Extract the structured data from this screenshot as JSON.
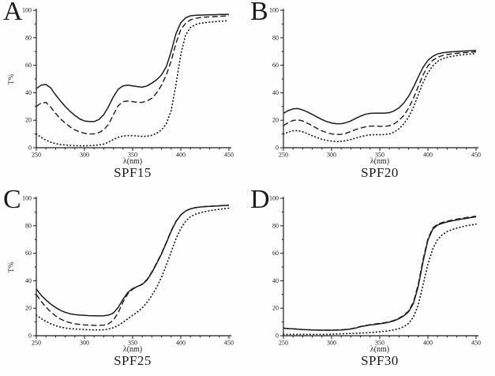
{
  "figure": {
    "background": "#fefefe",
    "stroke_color": "#1c1c1c",
    "line_styles": [
      "solid",
      "dashed",
      "dotted"
    ]
  },
  "chart_data": [
    {
      "type": "line",
      "panel_label": "A",
      "title": "SPF15",
      "xlabel": "λ(nm)",
      "ylabel": "T%",
      "xlim": [
        250,
        450
      ],
      "ylim": [
        0,
        100
      ],
      "x_ticks": [
        250,
        300,
        350,
        400,
        450
      ],
      "y_ticks": [
        0,
        20,
        40,
        60,
        80,
        100
      ],
      "x_minor_step": 10,
      "y_minor_step": 10,
      "grid": false,
      "legend": "none",
      "x": [
        250,
        255,
        260,
        265,
        270,
        275,
        280,
        285,
        290,
        295,
        300,
        305,
        310,
        315,
        320,
        325,
        330,
        335,
        340,
        345,
        350,
        355,
        360,
        365,
        370,
        375,
        380,
        385,
        390,
        395,
        400,
        405,
        410,
        415,
        420,
        425,
        430,
        435,
        440,
        445,
        450
      ],
      "series": [
        {
          "name": "solid-curve",
          "style": "solid",
          "values": [
            43,
            45.5,
            46,
            43.5,
            38.5,
            34,
            30,
            26.5,
            23.5,
            21,
            19.5,
            19,
            19,
            20.5,
            24,
            30,
            37,
            42.5,
            45,
            45.5,
            45,
            44.5,
            44,
            45,
            47,
            49.5,
            53,
            59,
            70,
            83,
            91,
            94.5,
            96,
            96.3,
            96.5,
            96.6,
            96.7,
            96.8,
            96.9,
            97,
            97
          ]
        },
        {
          "name": "dashed-curve",
          "style": "dashed",
          "values": [
            30,
            32.5,
            33,
            29.5,
            25,
            21,
            18,
            15.2,
            13,
            11.5,
            10.5,
            10,
            10,
            11,
            13,
            17,
            24,
            30.5,
            33.5,
            34,
            33.5,
            33,
            33,
            34,
            36,
            40,
            45.5,
            53,
            63,
            76,
            86,
            90.5,
            93,
            94,
            94.7,
            95,
            95.2,
            95.4,
            95.6,
            95.8,
            96
          ]
        },
        {
          "name": "dotted-curve",
          "style": "dotted",
          "values": [
            10,
            7.5,
            5.5,
            4,
            3,
            2.3,
            2,
            1.7,
            1.5,
            1.4,
            1.4,
            1.5,
            1.7,
            2,
            2.6,
            4,
            6,
            7.6,
            8.5,
            8.8,
            8.8,
            8.5,
            8.2,
            8.4,
            9,
            10.5,
            13,
            17.5,
            27,
            46,
            68,
            82,
            87.5,
            89.5,
            90.5,
            91,
            91.4,
            91.7,
            92,
            92.2,
            92.5
          ]
        }
      ]
    },
    {
      "type": "line",
      "panel_label": "B",
      "title": "SPF20",
      "xlabel": "λ(nm)",
      "ylabel": "",
      "xlim": [
        250,
        450
      ],
      "ylim": [
        0,
        100
      ],
      "x_ticks": [
        250,
        300,
        350,
        400,
        450
      ],
      "y_ticks": [
        0,
        20,
        40,
        60,
        80,
        100
      ],
      "x_minor_step": 10,
      "y_minor_step": 10,
      "grid": false,
      "legend": "none",
      "x": [
        250,
        255,
        260,
        265,
        270,
        275,
        280,
        285,
        290,
        295,
        300,
        305,
        310,
        315,
        320,
        325,
        330,
        335,
        340,
        345,
        350,
        355,
        360,
        365,
        370,
        375,
        380,
        385,
        390,
        395,
        400,
        405,
        410,
        415,
        420,
        425,
        430,
        435,
        440,
        445,
        450
      ],
      "series": [
        {
          "name": "solid-curve",
          "style": "solid",
          "values": [
            25,
            27,
            28.3,
            28.5,
            27.5,
            26,
            24.2,
            22.3,
            20.5,
            19,
            18,
            17.5,
            17.5,
            18.2,
            19.5,
            21.3,
            23,
            24.3,
            25,
            25.2,
            25.2,
            25.2,
            25.5,
            26.8,
            29,
            32.5,
            37.5,
            44,
            51.5,
            58.5,
            63.5,
            66.5,
            68.2,
            69,
            69.5,
            69.8,
            70,
            70.2,
            70.4,
            70.6,
            70.8
          ]
        },
        {
          "name": "dashed-curve",
          "style": "dashed",
          "values": [
            16,
            18.3,
            19.8,
            20.3,
            19.5,
            17.8,
            16,
            14,
            12.3,
            11,
            10,
            9.6,
            9.7,
            10.5,
            11.8,
            13.2,
            14.3,
            15.2,
            15.7,
            15.8,
            15.6,
            15.6,
            16,
            17.4,
            19.8,
            23.5,
            28.8,
            36,
            44.5,
            53,
            59.5,
            63.5,
            65.8,
            67,
            67.8,
            68.3,
            68.7,
            69,
            69.3,
            69.5,
            69.8
          ]
        },
        {
          "name": "dotted-curve",
          "style": "dotted",
          "values": [
            10,
            11.4,
            12.3,
            12.5,
            11.6,
            10.2,
            8.7,
            7.3,
            6.1,
            5.3,
            4.8,
            4.5,
            4.6,
            5.1,
            6,
            7,
            8,
            8.8,
            9.3,
            9.5,
            9.5,
            9.6,
            10,
            11.4,
            13.8,
            17.3,
            22.3,
            29.5,
            38.5,
            47.5,
            54.5,
            59.5,
            62.8,
            64.7,
            65.8,
            66.5,
            67,
            67.5,
            67.9,
            68.2,
            68.5
          ]
        }
      ]
    },
    {
      "type": "line",
      "panel_label": "C",
      "title": "SPF25",
      "xlabel": "λ(nm)",
      "ylabel": "T%",
      "xlim": [
        250,
        450
      ],
      "ylim": [
        0,
        100
      ],
      "x_ticks": [
        250,
        300,
        350,
        400,
        450
      ],
      "y_ticks": [
        0,
        20,
        40,
        60,
        80,
        100
      ],
      "x_minor_step": 10,
      "y_minor_step": 10,
      "grid": false,
      "legend": "none",
      "x": [
        250,
        255,
        260,
        265,
        270,
        275,
        280,
        285,
        290,
        295,
        300,
        305,
        310,
        315,
        320,
        325,
        330,
        335,
        340,
        345,
        350,
        355,
        360,
        365,
        370,
        375,
        380,
        385,
        390,
        395,
        400,
        405,
        410,
        415,
        420,
        425,
        430,
        435,
        440,
        445,
        450
      ],
      "series": [
        {
          "name": "solid-curve",
          "style": "solid",
          "values": [
            34,
            29.5,
            26,
            23,
            20.5,
            18.5,
            17,
            16,
            15.4,
            15,
            14.8,
            14.6,
            14.5,
            14.4,
            14.5,
            15,
            16.5,
            20.5,
            26.5,
            31.5,
            34.3,
            35.8,
            37.3,
            40.5,
            46,
            52.5,
            59.5,
            67.5,
            76,
            83,
            87.8,
            90.7,
            92.3,
            93.1,
            93.6,
            93.9,
            94.1,
            94.3,
            94.5,
            94.7,
            94.9
          ]
        },
        {
          "name": "dashed-curve",
          "style": "dashed",
          "values": [
            30,
            25,
            20.8,
            17.3,
            14.4,
            12.2,
            10.5,
            9.4,
            8.7,
            8.2,
            7.9,
            7.7,
            7.5,
            7.5,
            7.7,
            8.7,
            11.3,
            16.8,
            24.5,
            30.5,
            33.8,
            35.8,
            37.6,
            41,
            46.5,
            53,
            60,
            68,
            76.5,
            83.3,
            88,
            90.8,
            92.4,
            93.2,
            93.7,
            94,
            94.2,
            94.4,
            94.6,
            94.8,
            95
          ]
        },
        {
          "name": "dotted-curve",
          "style": "dotted",
          "values": [
            15,
            12.5,
            10.4,
            8.7,
            7.3,
            6.3,
            5.6,
            5.2,
            4.9,
            4.7,
            4.5,
            4.3,
            4.2,
            4.2,
            4.3,
            4.8,
            5.8,
            7.4,
            9.7,
            12.3,
            14.8,
            17.3,
            20.3,
            24.3,
            29.3,
            35.3,
            42.5,
            51.5,
            61,
            70.5,
            78,
            83.3,
            86.6,
            88.3,
            89.5,
            90.3,
            90.9,
            91.5,
            92,
            92.4,
            92.8
          ]
        }
      ]
    },
    {
      "type": "line",
      "panel_label": "D",
      "title": "SPF30",
      "xlabel": "λ(nm)",
      "ylabel": "",
      "xlim": [
        250,
        450
      ],
      "ylim": [
        0,
        100
      ],
      "x_ticks": [
        250,
        300,
        350,
        400,
        450
      ],
      "y_ticks": [
        0,
        20,
        40,
        60,
        80,
        100
      ],
      "x_minor_step": 10,
      "y_minor_step": 10,
      "grid": false,
      "legend": "none",
      "x": [
        250,
        255,
        260,
        265,
        270,
        275,
        280,
        285,
        290,
        295,
        300,
        305,
        310,
        315,
        320,
        325,
        330,
        335,
        340,
        345,
        350,
        355,
        360,
        365,
        370,
        375,
        380,
        385,
        390,
        395,
        400,
        405,
        410,
        415,
        420,
        425,
        430,
        435,
        440,
        445,
        450
      ],
      "series": [
        {
          "name": "solid-curve",
          "style": "solid",
          "values": [
            5.5,
            5.2,
            5,
            4.7,
            4.5,
            4.3,
            4.2,
            4.1,
            4,
            4,
            4,
            4.1,
            4.2,
            4.5,
            4.9,
            5.6,
            6.5,
            7.2,
            7.8,
            8.2,
            8.7,
            9.2,
            9.9,
            10.9,
            12.4,
            14.4,
            17.4,
            23.5,
            36,
            54,
            69.5,
            77.5,
            80.5,
            81.8,
            82.8,
            83.5,
            84.2,
            84.8,
            85.4,
            86,
            86.5
          ]
        },
        {
          "name": "dashed-curve",
          "style": "dashed",
          "values": [
            5.5,
            5.2,
            5,
            4.8,
            4.5,
            4.4,
            4.2,
            4.1,
            4.1,
            4.1,
            4.1,
            4.2,
            4.3,
            4.6,
            5,
            5.8,
            6.7,
            7.4,
            8,
            8.5,
            9,
            9.5,
            10.2,
            11.2,
            12.8,
            14.9,
            18,
            24.5,
            37.5,
            55.5,
            70.5,
            78.3,
            81.2,
            82.4,
            83.4,
            84.1,
            84.8,
            85.4,
            86,
            86.5,
            87
          ]
        },
        {
          "name": "dotted-curve",
          "style": "dotted",
          "values": [
            1,
            1,
            1,
            1,
            1,
            1,
            1,
            1,
            1,
            1,
            1.1,
            1.2,
            1.3,
            1.5,
            1.6,
            1.8,
            1.9,
            2.1,
            2.3,
            2.6,
            2.9,
            3.3,
            3.7,
            4.3,
            5.2,
            6.6,
            9,
            13.5,
            22.5,
            37,
            52,
            63,
            70,
            73.5,
            75.8,
            77.2,
            78.3,
            79.2,
            80,
            80.6,
            81.2
          ]
        }
      ]
    }
  ]
}
